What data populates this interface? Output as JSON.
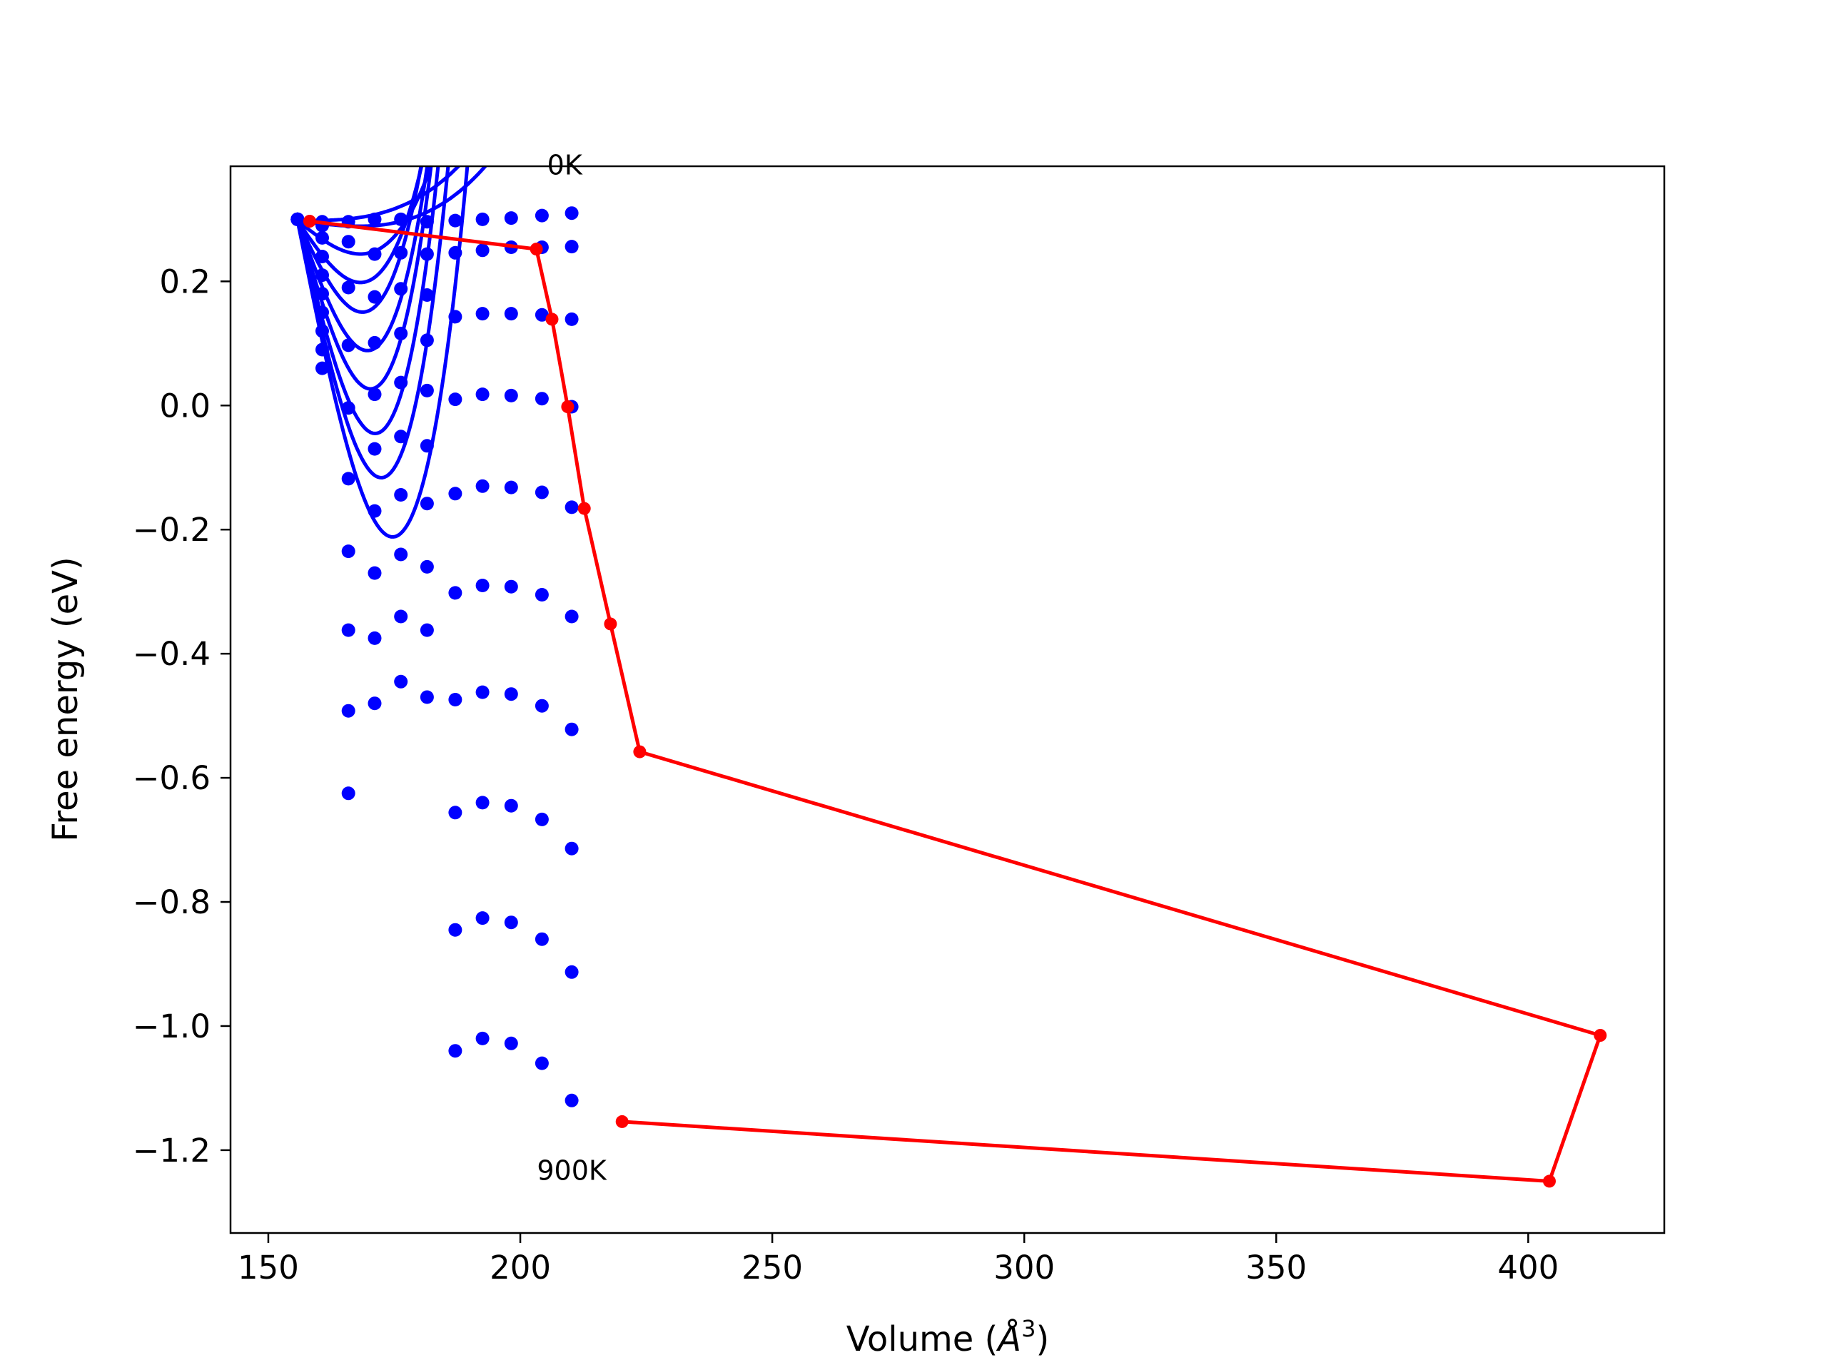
{
  "chart_data": {
    "type": "line",
    "title": "",
    "xlabel_prefix": "Volume (",
    "xlabel_symbol": "Å",
    "xlabel_exp": "3",
    "xlabel_suffix": ")",
    "ylabel": "Free energy (eV)",
    "xlim": [
      142.5,
      427
    ],
    "ylim": [
      -1.3335,
      0.3855
    ],
    "xticks": [
      150,
      200,
      250,
      300,
      350,
      400
    ],
    "yticks": [
      0.2,
      0.0,
      -0.2,
      -0.4,
      -0.6,
      -0.8,
      -1.0,
      -1.2
    ],
    "ytick_labels": [
      "0.2",
      "0.0",
      "−0.2",
      "−0.4",
      "−0.6",
      "−0.8",
      "−1.0",
      "−1.2"
    ],
    "grid": false,
    "annotations": [
      {
        "text": "0K",
        "x": 208.8,
        "y": 0.372
      },
      {
        "text": "900K",
        "x": 210.2,
        "y": -1.248
      }
    ],
    "colors": {
      "isotherms": "#0000ff",
      "minimum_path": "#ff0000"
    },
    "isotherm_series": {
      "name": "isotherms",
      "x": [
        155.8,
        160.7,
        165.9,
        171.1,
        176.3,
        181.5,
        187.1,
        192.5,
        198.2,
        204.3,
        210.2
      ],
      "fits": [
        {
          "x_min": 155.8,
          "a": 2.7e-06,
          "b": -1e-05,
          "c": 0.298
        },
        {
          "x_min": 155.8,
          "a": 2.5e-06,
          "b": -0.00112,
          "c": 0.298
        },
        {
          "x_min": 155.8,
          "a": 1.4e-05,
          "b": -0.0065,
          "c": 0.298
        },
        {
          "x_min": 155.8,
          "a": 2.57e-05,
          "b": -0.012,
          "c": 0.298
        },
        {
          "x_min": 155.8,
          "a": 3.46e-05,
          "b": -0.0172,
          "c": 0.298
        },
        {
          "x_min": 155.8,
          "a": 3.94e-05,
          "b": -0.02269,
          "c": 0.298
        },
        {
          "x_min": 155.8,
          "a": 4.48e-05,
          "b": -0.02813,
          "c": 0.298
        },
        {
          "x_min": 155.8,
          "a": 4.7e-05,
          "b": -0.03343,
          "c": 0.298
        },
        {
          "x_min": 155.8,
          "a": 4.52e-05,
          "b": -0.03742,
          "c": 0.298
        },
        {
          "x_min": 155.8,
          "a": 3.8e-05,
          "b": -0.04055,
          "c": 0.298
        }
      ],
      "points": [
        [
          0.3,
          0.296,
          0.296,
          0.3,
          0.3,
          0.296,
          0.298,
          0.3,
          0.302,
          0.306,
          0.31
        ],
        [
          0.3,
          0.29,
          0.264,
          0.244,
          0.246,
          0.244,
          0.246,
          0.25,
          0.255,
          0.255,
          0.256
        ],
        [
          0.3,
          0.27,
          0.19,
          0.175,
          0.188,
          0.178,
          0.143,
          0.148,
          0.148,
          0.146,
          0.139
        ],
        [
          0.3,
          0.24,
          0.097,
          0.101,
          0.116,
          0.105,
          0.01,
          0.018,
          0.016,
          0.011,
          -0.002
        ],
        [
          0.3,
          0.21,
          -0.004,
          0.018,
          0.037,
          0.024,
          -0.142,
          -0.13,
          -0.132,
          -0.14,
          -0.164
        ],
        [
          0.3,
          0.18,
          -0.118,
          -0.07,
          -0.05,
          -0.065,
          -0.302,
          -0.29,
          -0.292,
          -0.305,
          -0.34
        ],
        [
          0.3,
          0.15,
          -0.235,
          -0.17,
          -0.144,
          -0.158,
          -0.474,
          -0.462,
          -0.465,
          -0.484,
          -0.522
        ],
        [
          0.3,
          0.12,
          -0.362,
          -0.27,
          -0.24,
          -0.26,
          -0.656,
          -0.64,
          -0.645,
          -0.667,
          -0.714
        ],
        [
          0.3,
          0.09,
          -0.492,
          -0.375,
          -0.34,
          -0.362,
          -0.845,
          -0.826,
          -0.833,
          -0.86,
          -0.913
        ],
        [
          0.3,
          0.06,
          -0.625,
          -0.48,
          -0.445,
          -0.47,
          -1.04,
          -1.02,
          -1.028,
          -1.06,
          -1.12
        ]
      ]
    },
    "minimum_path_series": {
      "name": "minimum path",
      "x": [
        158.2,
        203.2,
        206.3,
        209.4,
        212.7,
        217.9,
        223.7,
        414.3,
        404.2,
        220.2
      ],
      "y": [
        0.297,
        0.252,
        0.139,
        -0.002,
        -0.166,
        -0.352,
        -0.558,
        -1.015,
        -1.25,
        -1.154
      ]
    }
  }
}
